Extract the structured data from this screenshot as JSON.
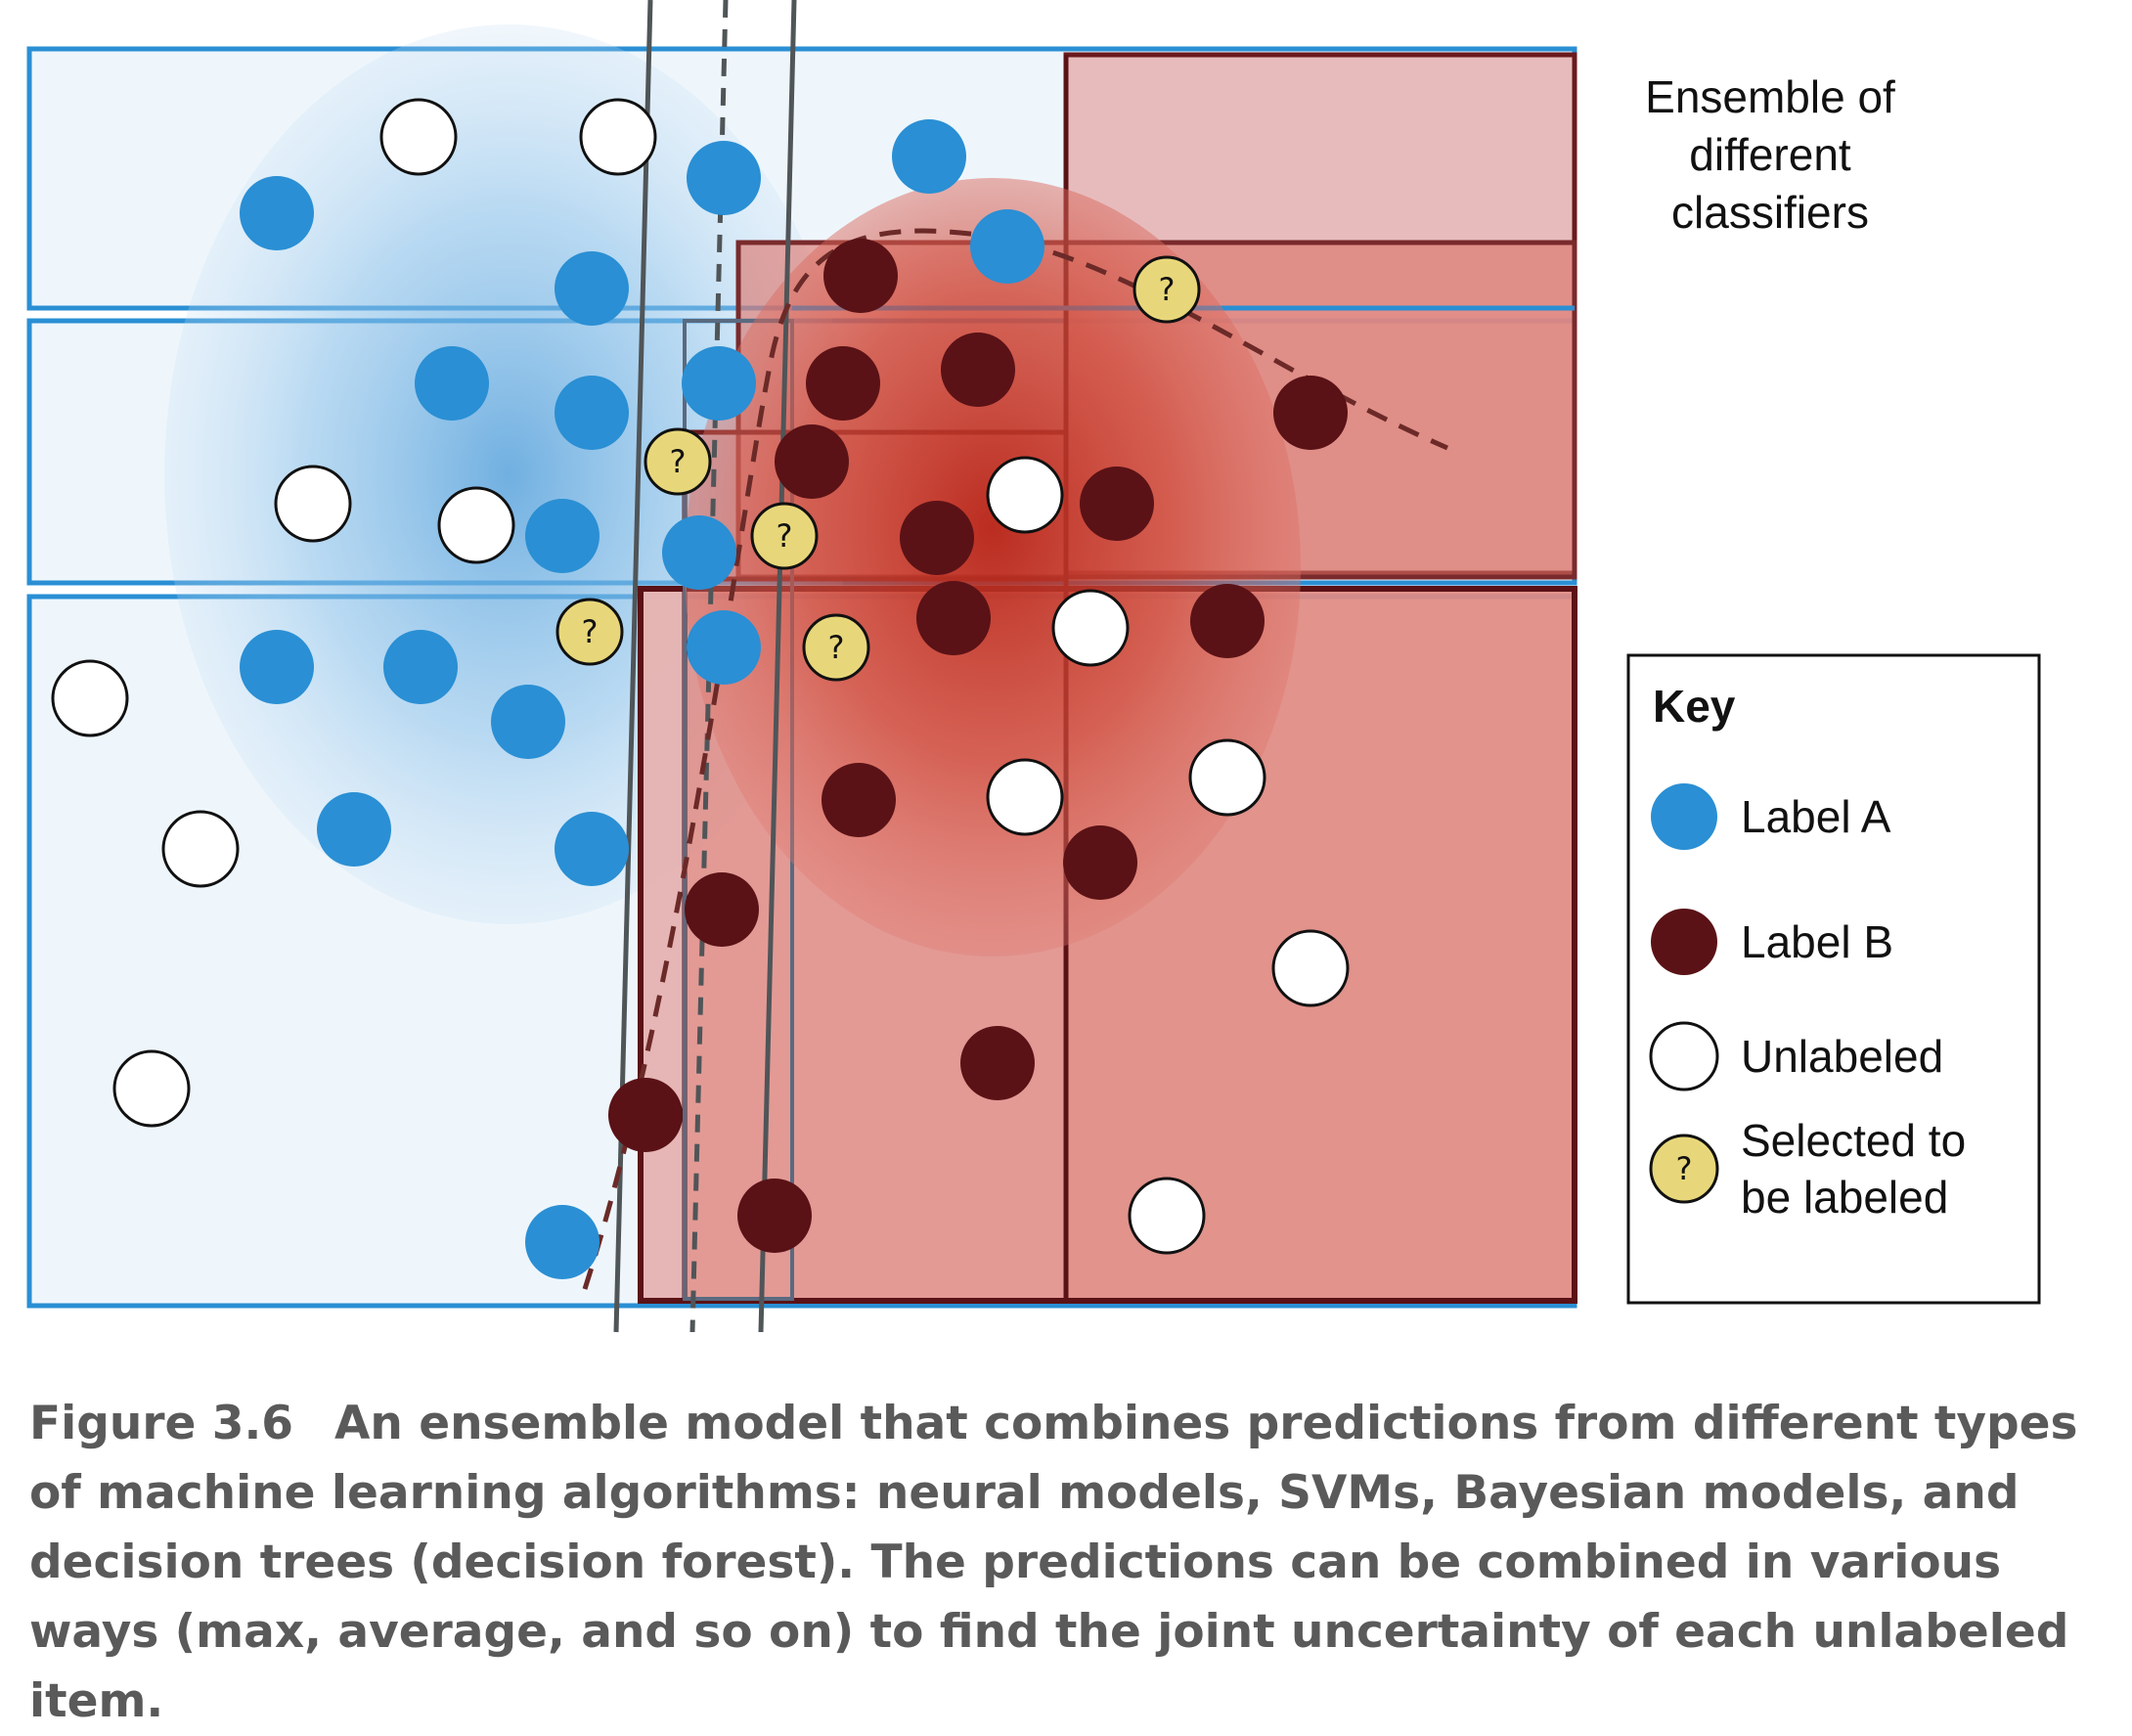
{
  "ensemble_label": [
    "Ensemble of",
    "different",
    "classifiers"
  ],
  "key": {
    "title": "Key",
    "items": [
      {
        "label": [
          "Label A"
        ],
        "kind": "label_a"
      },
      {
        "label": [
          "Label B"
        ],
        "kind": "label_b"
      },
      {
        "label": [
          "Unlabeled"
        ],
        "kind": "unlabeled"
      },
      {
        "label": [
          "Selected to",
          "be labeled"
        ],
        "kind": "selected"
      }
    ]
  },
  "point_mark": "?",
  "colors": {
    "label_a": "#2a8fd4",
    "label_b": "#5a1216",
    "unlabeled": "#ffffff",
    "selected": "#e8d77a",
    "box_blue": "#2a8fd4",
    "box_red": "#5a1216",
    "caption": "#5a5a5a"
  },
  "caption": {
    "figure_number": "Figure 3.6",
    "text": "An ensemble model that combines predictions from different types of machine learning algorithms: neural models, SVMs, Bayesian models, and decision trees (decision forest). The predictions can be combined in various ways (max, average, and so on) to find the joint uncertainty of each unlabeled item."
  }
}
